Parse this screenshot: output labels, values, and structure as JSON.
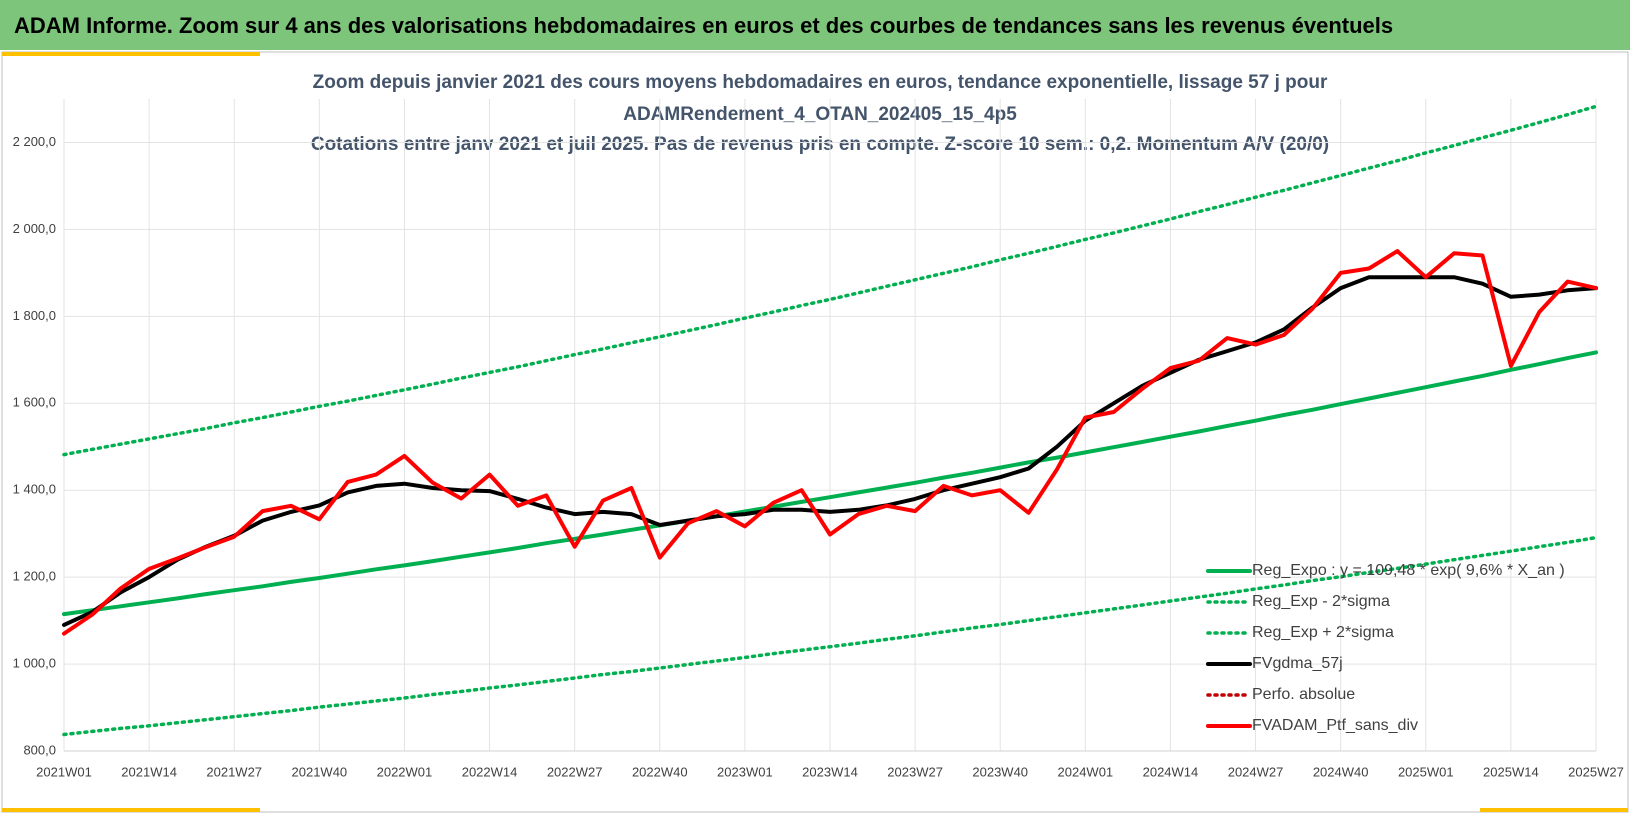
{
  "header": "ADAM Informe. Zoom sur 4 ans des valorisations hebdomadaires en euros et des courbes de tendances sans les revenus éventuels",
  "chart_data": {
    "type": "line",
    "title": [
      "Zoom depuis janvier 2021 des cours moyens hebdomadaires  en euros, tendance exponentielle, lissage 57 j pour",
      "ADAMRendement_4_OTAN_202405_15_4p5",
      "Cotations  entre janv 2021 et juil 2025. Pas de revenus pris en compte. Z-score 10 sem.: 0,2. Momentum  A/V (20/0)"
    ],
    "categories": [
      "2021W01",
      null,
      null,
      "2021W14",
      null,
      null,
      "2021W27",
      null,
      null,
      "2021W40",
      null,
      null,
      "2022W01",
      null,
      null,
      "2022W14",
      null,
      null,
      "2022W27",
      null,
      null,
      "2022W40",
      null,
      null,
      "2023W01",
      null,
      null,
      "2023W14",
      null,
      null,
      "2023W27",
      null,
      null,
      "2023W40",
      null,
      null,
      "2024W01",
      null,
      null,
      "2024W14",
      null,
      null,
      "2024W27",
      null,
      null,
      "2024W40",
      null,
      null,
      "2025W01",
      null,
      null,
      "2025W14",
      null,
      null,
      "2025W27"
    ],
    "ylim": [
      800,
      2300
    ],
    "yticks": [
      {
        "value": 800,
        "label": "800,0"
      },
      {
        "value": 1000,
        "label": "1 000,0"
      },
      {
        "value": 1200,
        "label": "1 200,0"
      },
      {
        "value": 1400,
        "label": "1 400,0"
      },
      {
        "value": 1600,
        "label": "1 600,0"
      },
      {
        "value": 1800,
        "label": "1 800,0"
      },
      {
        "value": 2000,
        "label": "2 000,0"
      },
      {
        "value": 2200,
        "label": "2 200,0"
      }
    ],
    "grid": true,
    "legend": "lower right",
    "series": [
      {
        "name": "Reg_Expo : y = 109,48 * exp( 9,6% *  X_an )",
        "color": "#00b050",
        "line_style": "solid",
        "values": [
          1115,
          1124,
          1133,
          1142,
          1151,
          1161,
          1170,
          1179,
          1189,
          1198,
          1208,
          1218,
          1227,
          1237,
          1247,
          1257,
          1267,
          1278,
          1288,
          1298,
          1309,
          1319,
          1330,
          1340,
          1351,
          1362,
          1373,
          1384,
          1395,
          1406,
          1417,
          1429,
          1440,
          1452,
          1464,
          1475,
          1487,
          1499,
          1511,
          1523,
          1535,
          1548,
          1560,
          1573,
          1585,
          1598,
          1611,
          1624,
          1637,
          1650,
          1663,
          1677,
          1690,
          1704,
          1717
        ]
      },
      {
        "name": "Reg_Exp - 2*sigma",
        "color": "#00b050",
        "line_style": "dotted",
        "values": [
          838,
          845,
          852,
          858,
          865,
          872,
          879,
          886,
          893,
          901,
          908,
          915,
          922,
          930,
          937,
          945,
          952,
          960,
          968,
          976,
          983,
          991,
          999,
          1007,
          1015,
          1024,
          1032,
          1040,
          1048,
          1057,
          1065,
          1074,
          1083,
          1091,
          1100,
          1109,
          1118,
          1127,
          1136,
          1145,
          1154,
          1163,
          1173,
          1182,
          1192,
          1201,
          1211,
          1220,
          1230,
          1240,
          1250,
          1260,
          1270,
          1280,
          1291
        ]
      },
      {
        "name": "Reg_Exp + 2*sigma",
        "color": "#00b050",
        "line_style": "dotted",
        "values": [
          1482,
          1494,
          1506,
          1518,
          1530,
          1542,
          1555,
          1567,
          1580,
          1593,
          1605,
          1618,
          1631,
          1644,
          1658,
          1671,
          1684,
          1698,
          1712,
          1725,
          1739,
          1753,
          1767,
          1781,
          1796,
          1810,
          1825,
          1839,
          1854,
          1869,
          1884,
          1899,
          1914,
          1930,
          1945,
          1961,
          1977,
          1992,
          2008,
          2024,
          2041,
          2057,
          2074,
          2090,
          2107,
          2124,
          2141,
          2158,
          2176,
          2193,
          2211,
          2228,
          2246,
          2264,
          2283
        ]
      },
      {
        "name": "FVgdma_57j",
        "color": "#000000",
        "line_style": "solid",
        "values": [
          1090,
          1120,
          1165,
          1200,
          1240,
          1270,
          1295,
          1330,
          1350,
          1365,
          1395,
          1410,
          1415,
          1405,
          1400,
          1398,
          1380,
          1360,
          1345,
          1350,
          1345,
          1320,
          1330,
          1340,
          1345,
          1355,
          1355,
          1350,
          1355,
          1365,
          1380,
          1400,
          1415,
          1430,
          1450,
          1500,
          1560,
          1600,
          1640,
          1670,
          1700,
          1720,
          1740,
          1770,
          1820,
          1865,
          1890,
          1890,
          1890,
          1890,
          1875,
          1845,
          1850,
          1860,
          1865
        ]
      },
      {
        "name": "Perfo. absolue",
        "color": "#c00000",
        "line_style": "dotted",
        "values": [
          null,
          null,
          null,
          null,
          null,
          null,
          null,
          null,
          null,
          null,
          null,
          null,
          null,
          null,
          null,
          null,
          null,
          null,
          null,
          null,
          null,
          null,
          null,
          null,
          null,
          null,
          null,
          null,
          null,
          null,
          null,
          null,
          null,
          null,
          null,
          null,
          null,
          null,
          null,
          null,
          null,
          null,
          null,
          null,
          null,
          null,
          null,
          null,
          null,
          null,
          null,
          null,
          null,
          null,
          null
        ]
      },
      {
        "name": "FVADAM_Ptf_sans_div",
        "color": "#ff0000",
        "line_style": "solid",
        "values": [
          1070,
          1114,
          1174,
          1219,
          1243,
          1269,
          1293,
          1352,
          1364,
          1333,
          1419,
          1436,
          1479,
          1417,
          1381,
          1436,
          1364,
          1388,
          1270,
          1376,
          1405,
          1245,
          1324,
          1352,
          1317,
          1371,
          1400,
          1298,
          1345,
          1364,
          1352,
          1410,
          1388,
          1400,
          1348,
          1448,
          1567,
          1580,
          1633,
          1681,
          1698,
          1750,
          1735,
          1757,
          1817,
          1900,
          1910,
          1950,
          1890,
          1945,
          1940,
          1686,
          1810,
          1880,
          1865
        ]
      }
    ]
  }
}
